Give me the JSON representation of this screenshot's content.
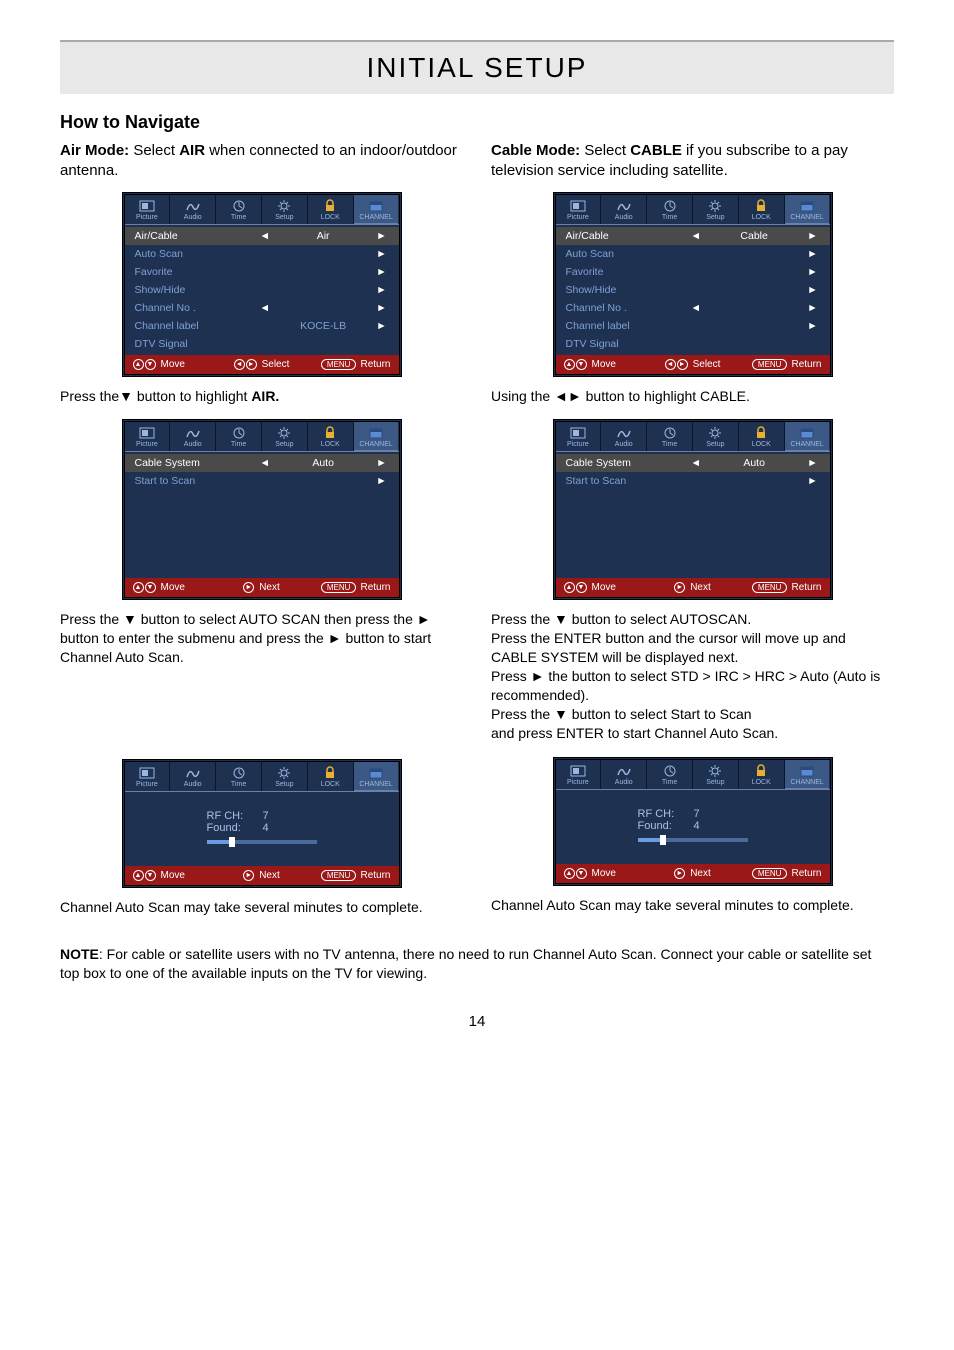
{
  "page": {
    "title": "INITIAL SETUP",
    "section": "How to Navigate",
    "number": "14"
  },
  "air": {
    "intro_bold": "Air Mode:",
    "intro_rest": " Select ",
    "intro_bold2": "AIR",
    "intro_rest2": " when connected to an indoor/outdoor antenna.",
    "cap1a": "Press the",
    "cap1b": " button to highlight ",
    "cap1c": "AIR.",
    "cap2": "Press the ▼ button to select AUTO SCAN then press the ► button to enter the submenu and press the ► button to start Channel Auto Scan.",
    "cap3": "Channel Auto Scan may take several minutes to complete."
  },
  "cable": {
    "intro_bold": "Cable Mode:",
    "intro_rest": " Select ",
    "intro_bold2": "CABLE",
    "intro_rest2": " if you subscribe to a pay television service including satellite.",
    "cap1": "Using the ◄► button to highlight CABLE.",
    "cap2": "Press the ▼ button to select AUTOSCAN.\nPress the ENTER button and the cursor will move up and CABLE SYSTEM will be displayed next.\nPress ► the button to select STD > IRC > HRC > Auto (Auto is recommended).\nPress the ▼ button to select Start to Scan\nand press ENTER to start Channel Auto Scan.",
    "cap3": "Channel Auto Scan may take several minutes to complete."
  },
  "note": {
    "bold": "NOTE",
    "text": ": For cable or satellite users with no TV antenna, there no need to run Channel Auto Scan. Connect your cable or satellite set top box to one of the available inputs on the TV for viewing."
  },
  "tabs": [
    "Picture",
    "Audio",
    "Time",
    "Setup",
    "LOCK",
    "CHANNEL"
  ],
  "menu_channel": {
    "items": [
      {
        "lab": "Air/Cable",
        "arrL": "◄",
        "val": "",
        "arrR": "►",
        "sel": true
      },
      {
        "lab": "Auto Scan",
        "arrR": "►"
      },
      {
        "lab": "Favorite",
        "arrR": "►"
      },
      {
        "lab": "Show/Hide",
        "arrR": "►"
      },
      {
        "lab": "Channel No .",
        "arrL": "◄",
        "arrR": "►"
      },
      {
        "lab": "Channel label",
        "val2": "",
        "arrR": "►"
      },
      {
        "lab": "DTV Signal"
      }
    ]
  },
  "menu_air": {
    "val0": "Air",
    "val5": "KOCE-LB"
  },
  "menu_cable": {
    "val0": "Cable",
    "val5": ""
  },
  "menu_scan": {
    "items": [
      {
        "lab": "Cable System",
        "arrL": "◄",
        "val": "Auto",
        "arrR": "►",
        "sel": true
      },
      {
        "lab": "Start to Scan",
        "arrR": "►"
      }
    ]
  },
  "scan": {
    "rf_k": "RF  CH:",
    "rf_v": "7",
    "found_k": "Found:",
    "found_v": "4",
    "progress_pct": 20
  },
  "footer": {
    "move": "Move",
    "select": "Select",
    "next": "Next",
    "menu": "MENU",
    "return": "Return"
  },
  "colors": {
    "panel_bg": "#1e3150",
    "row_link": "#7ea1d6",
    "row_sel": "#4a4a4a",
    "footer_bg": "#9a1818",
    "tab_active": "#3b5984",
    "title_bg": "#e8e8e8"
  }
}
